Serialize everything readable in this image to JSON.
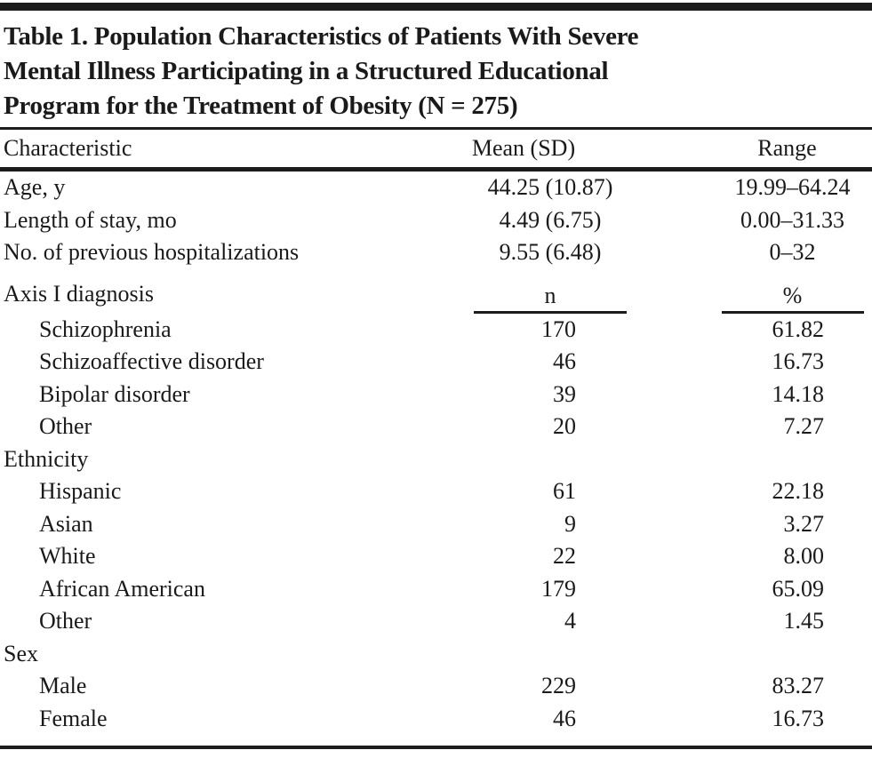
{
  "title": "Table 1. Population Characteristics of Patients With Severe Mental Illness Participating in a Structured Educational Program for the Treatment of Obesity (N = 275)",
  "title_lines": [
    "Table 1. Population Characteristics of Patients With Severe",
    "Mental Illness Participating in a Structured Educational",
    "Program for the Treatment of Obesity (N = 275)"
  ],
  "columns": {
    "characteristic": "Characteristic",
    "mean_sd": "Mean (SD)",
    "range": "Range"
  },
  "continuous_rows": [
    {
      "label": "Age, y",
      "mean_sd": "44.25 (10.87)",
      "range": "19.99–64.24"
    },
    {
      "label": "Length of stay, mo",
      "mean_sd": "4.49 (6.75)",
      "range": "0.00–31.33"
    },
    {
      "label": "No. of previous hospitalizations",
      "mean_sd": "9.55 (6.48)",
      "range": "0–32"
    }
  ],
  "diagnosis": {
    "label": "Axis I diagnosis",
    "n_header": "n",
    "pct_header": "%",
    "rows": [
      {
        "label": "Schizophrenia",
        "n": "170",
        "pct": "61.82"
      },
      {
        "label": "Schizoaffective disorder",
        "n": "46",
        "pct": "16.73"
      },
      {
        "label": "Bipolar disorder",
        "n": "39",
        "pct": "14.18"
      },
      {
        "label": "Other",
        "n": "20",
        "pct": "7.27"
      }
    ]
  },
  "ethnicity": {
    "label": "Ethnicity",
    "rows": [
      {
        "label": "Hispanic",
        "n": "61",
        "pct": "22.18"
      },
      {
        "label": "Asian",
        "n": "9",
        "pct": "3.27"
      },
      {
        "label": "White",
        "n": "22",
        "pct": "8.00"
      },
      {
        "label": "African American",
        "n": "179",
        "pct": "65.09"
      },
      {
        "label": "Other",
        "n": "4",
        "pct": "1.45"
      }
    ]
  },
  "sex": {
    "label": "Sex",
    "rows": [
      {
        "label": "Male",
        "n": "229",
        "pct": "83.27"
      },
      {
        "label": "Female",
        "n": "46",
        "pct": "16.73"
      }
    ]
  }
}
